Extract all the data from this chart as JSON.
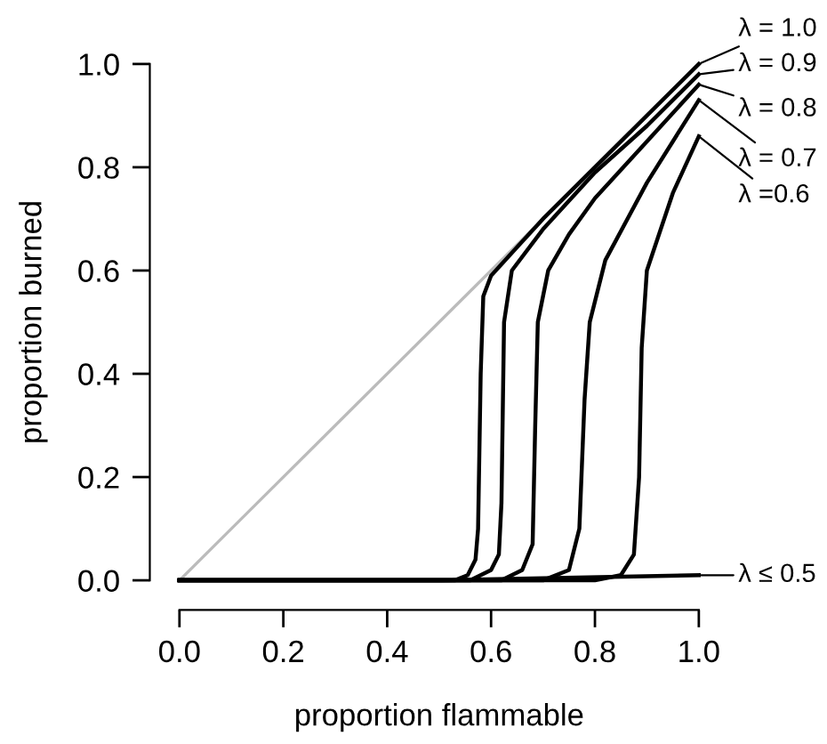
{
  "chart_data": {
    "type": "line",
    "xlabel": "proportion flammable",
    "ylabel": "proportion burned",
    "xlim": [
      0,
      1
    ],
    "ylim": [
      0,
      1
    ],
    "legend": "right",
    "xticks": [
      {
        "value": 0,
        "label": "0.0"
      },
      {
        "value": 0.2,
        "label": "0.2"
      },
      {
        "value": 0.4,
        "label": "0.4"
      },
      {
        "value": 0.6,
        "label": "0.6"
      },
      {
        "value": 0.8,
        "label": "0.8"
      },
      {
        "value": 1,
        "label": "1.0"
      }
    ],
    "yticks": [
      {
        "value": 0,
        "label": "0.0"
      },
      {
        "value": 0.2,
        "label": "0.2"
      },
      {
        "value": 0.4,
        "label": "0.4"
      },
      {
        "value": 0.6,
        "label": "0.6"
      },
      {
        "value": 0.8,
        "label": "0.8"
      },
      {
        "value": 1,
        "label": "1.0"
      }
    ],
    "grid": false,
    "marker": "none",
    "line_style": "solid",
    "series": [
      {
        "color": "#bbbbbb",
        "x": [
          0,
          1
        ],
        "values": [
          0,
          1
        ]
      },
      {
        "name": "λ = 1.0",
        "color": "#000000",
        "x": [
          0,
          0.53,
          0.555,
          0.57,
          0.575,
          0.58,
          0.585,
          0.6,
          0.65,
          0.7,
          0.8,
          0.9,
          1.0
        ],
        "values": [
          0,
          0,
          0.01,
          0.04,
          0.1,
          0.4,
          0.55,
          0.59,
          0.645,
          0.7,
          0.8,
          0.9,
          1.0
        ]
      },
      {
        "name": "λ = 0.9",
        "color": "#000000",
        "x": [
          0,
          0.56,
          0.6,
          0.615,
          0.62,
          0.625,
          0.64,
          0.7,
          0.8,
          0.9,
          1.0
        ],
        "values": [
          0,
          0,
          0.02,
          0.05,
          0.15,
          0.5,
          0.6,
          0.68,
          0.79,
          0.88,
          0.98
        ]
      },
      {
        "name": "λ = 0.8",
        "color": "#000000",
        "x": [
          0,
          0.62,
          0.66,
          0.68,
          0.685,
          0.69,
          0.71,
          0.75,
          0.8,
          0.9,
          1.0
        ],
        "values": [
          0,
          0,
          0.02,
          0.07,
          0.3,
          0.5,
          0.6,
          0.67,
          0.74,
          0.85,
          0.96
        ]
      },
      {
        "name": "λ = 0.7",
        "color": "#000000",
        "x": [
          0,
          0.7,
          0.75,
          0.77,
          0.78,
          0.79,
          0.82,
          0.9,
          1.0
        ],
        "values": [
          0,
          0,
          0.02,
          0.1,
          0.35,
          0.5,
          0.62,
          0.77,
          0.93
        ]
      },
      {
        "name": "λ =0.6",
        "color": "#000000",
        "x": [
          0,
          0.8,
          0.85,
          0.875,
          0.885,
          0.89,
          0.9,
          0.95,
          1.0
        ],
        "values": [
          0,
          0,
          0.01,
          0.05,
          0.2,
          0.45,
          0.6,
          0.75,
          0.86
        ]
      },
      {
        "name": "λ ≤ 0.5",
        "color": "#000000",
        "x": [
          0,
          0.5,
          1.0
        ],
        "values": [
          0,
          0,
          0.01
        ]
      }
    ]
  }
}
